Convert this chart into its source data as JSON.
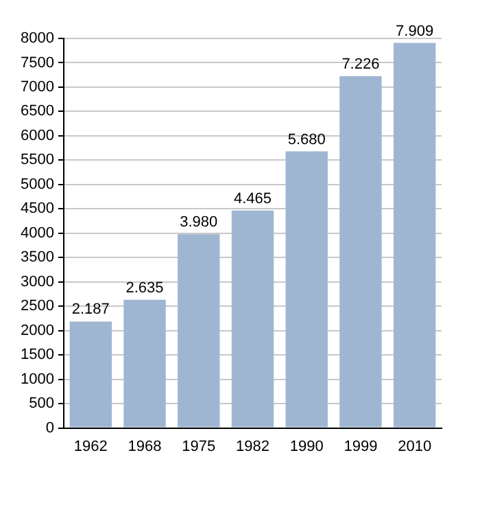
{
  "chart_data": {
    "type": "bar",
    "categories": [
      "1962",
      "1968",
      "1975",
      "1982",
      "1990",
      "1999",
      "2010"
    ],
    "values": [
      2187,
      2635,
      3980,
      4465,
      5680,
      7226,
      7909
    ],
    "value_labels": [
      "2.187",
      "2.635",
      "3.980",
      "4.465",
      "5.680",
      "7.226",
      "7.909"
    ],
    "color": "#9fb6d2",
    "ylim": [
      0,
      8000
    ],
    "yticks": [
      0,
      500,
      1000,
      1500,
      2000,
      2500,
      3000,
      3500,
      4000,
      4500,
      5000,
      5500,
      6000,
      6500,
      7000,
      7500,
      8000
    ],
    "grid": "y"
  }
}
